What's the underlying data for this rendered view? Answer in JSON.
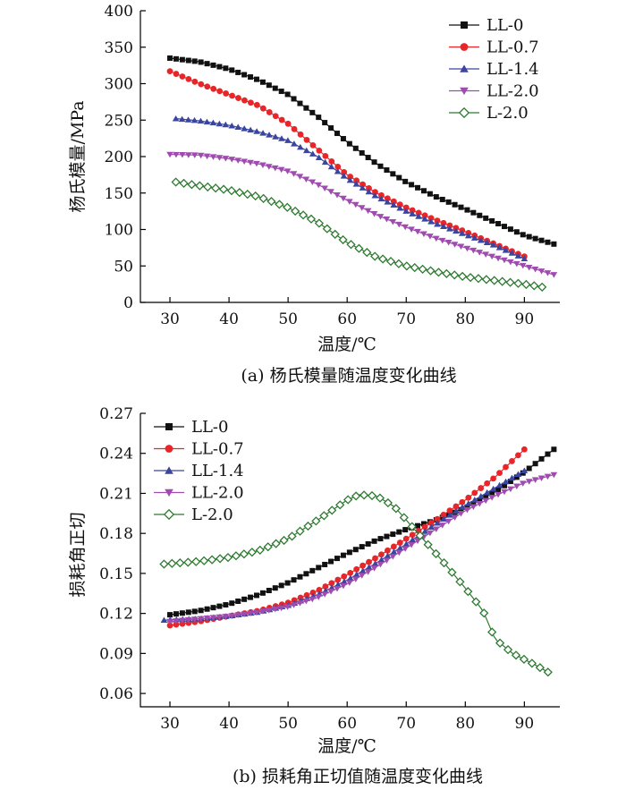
{
  "chart_data": [
    {
      "type": "line",
      "title": "(a) 杨氏模量随温度变化曲线",
      "xlabel": "温度/℃",
      "ylabel": "杨氏模量/MPa",
      "xlim": [
        25,
        96
      ],
      "ylim": [
        0,
        400
      ],
      "xticks": [
        30,
        40,
        50,
        60,
        70,
        80,
        90
      ],
      "yticks": [
        0,
        50,
        100,
        150,
        200,
        250,
        300,
        350,
        400
      ],
      "grid": false,
      "legend_position": "top-right",
      "series": [
        {
          "name": "LL-0",
          "color": "#111111",
          "marker": "square",
          "x": [
            30,
            35,
            40,
            45,
            50,
            55,
            60,
            65,
            70,
            75,
            80,
            85,
            90,
            95
          ],
          "y": [
            335,
            330,
            320,
            305,
            285,
            255,
            220,
            190,
            165,
            145,
            128,
            110,
            92,
            80
          ]
        },
        {
          "name": "LL-0.7",
          "color": "#e8262a",
          "marker": "circle",
          "x": [
            30,
            35,
            40,
            45,
            50,
            55,
            60,
            65,
            70,
            75,
            80,
            85,
            90
          ],
          "y": [
            317,
            300,
            285,
            270,
            245,
            210,
            175,
            150,
            130,
            113,
            97,
            80,
            63
          ]
        },
        {
          "name": "LL-1.4",
          "color": "#3a45a0",
          "marker": "triangle-up",
          "x": [
            31,
            35,
            40,
            45,
            50,
            55,
            60,
            65,
            70,
            75,
            80,
            85,
            90
          ],
          "y": [
            252,
            249,
            243,
            234,
            222,
            200,
            170,
            145,
            125,
            108,
            93,
            78,
            60
          ]
        },
        {
          "name": "LL-2.0",
          "color": "#a04bb0",
          "marker": "triangle-down",
          "x": [
            30,
            35,
            40,
            45,
            50,
            55,
            60,
            65,
            70,
            75,
            80,
            85,
            90,
            95
          ],
          "y": [
            203,
            202,
            197,
            190,
            180,
            162,
            140,
            120,
            103,
            88,
            75,
            62,
            50,
            38
          ]
        },
        {
          "name": "L-2.0",
          "color": "#2e7a30",
          "marker": "diamond-open",
          "x": [
            31,
            35,
            40,
            45,
            50,
            55,
            60,
            65,
            70,
            75,
            80,
            85,
            90,
            93
          ],
          "y": [
            165,
            160,
            154,
            145,
            130,
            110,
            82,
            62,
            50,
            42,
            35,
            30,
            25,
            21
          ]
        }
      ]
    },
    {
      "type": "line",
      "title": "(b) 损耗角正切值随温度变化曲线",
      "xlabel": "温度/℃",
      "ylabel": "损耗角正切",
      "xlim": [
        25,
        96
      ],
      "ylim": [
        0.05,
        0.27
      ],
      "xticks": [
        30,
        40,
        50,
        60,
        70,
        80,
        90
      ],
      "yticks": [
        "0.06",
        "0.09",
        "0.12",
        "0.15",
        "0.18",
        "0.21",
        "0.24",
        "0.27"
      ],
      "grid": false,
      "legend_position": "top-left",
      "series": [
        {
          "name": "LL-0",
          "color": "#111111",
          "marker": "square",
          "x": [
            30,
            35,
            40,
            45,
            50,
            55,
            60,
            65,
            70,
            75,
            80,
            85,
            90,
            95
          ],
          "y": [
            0.119,
            0.122,
            0.127,
            0.134,
            0.143,
            0.154,
            0.165,
            0.175,
            0.183,
            0.19,
            0.199,
            0.211,
            0.226,
            0.243
          ]
        },
        {
          "name": "LL-0.7",
          "color": "#e8262a",
          "marker": "circle",
          "x": [
            30,
            35,
            40,
            45,
            50,
            55,
            60,
            65,
            70,
            75,
            80,
            85,
            90
          ],
          "y": [
            0.111,
            0.114,
            0.118,
            0.122,
            0.128,
            0.137,
            0.149,
            0.162,
            0.176,
            0.19,
            0.205,
            0.222,
            0.243
          ]
        },
        {
          "name": "LL-1.4",
          "color": "#3a45a0",
          "marker": "triangle-up",
          "x": [
            29,
            35,
            40,
            45,
            50,
            55,
            60,
            65,
            70,
            75,
            80,
            85,
            90
          ],
          "y": [
            0.115,
            0.116,
            0.118,
            0.121,
            0.126,
            0.134,
            0.145,
            0.158,
            0.172,
            0.187,
            0.201,
            0.214,
            0.227
          ]
        },
        {
          "name": "LL-2.0",
          "color": "#a04bb0",
          "marker": "triangle-down",
          "x": [
            30,
            35,
            40,
            45,
            50,
            55,
            60,
            65,
            70,
            75,
            80,
            85,
            90,
            95
          ],
          "y": [
            0.114,
            0.116,
            0.118,
            0.121,
            0.125,
            0.132,
            0.142,
            0.155,
            0.169,
            0.183,
            0.197,
            0.208,
            0.218,
            0.224
          ]
        },
        {
          "name": "L-2.0",
          "color": "#2e7a30",
          "marker": "diamond-open",
          "x": [
            29,
            35,
            40,
            45,
            50,
            55,
            60,
            62,
            65,
            68,
            72,
            76,
            80,
            83,
            85,
            88,
            92,
            94
          ],
          "y": [
            0.157,
            0.159,
            0.162,
            0.167,
            0.176,
            0.19,
            0.205,
            0.209,
            0.208,
            0.2,
            0.18,
            0.16,
            0.139,
            0.122,
            0.101,
            0.09,
            0.081,
            0.076
          ]
        }
      ]
    }
  ]
}
